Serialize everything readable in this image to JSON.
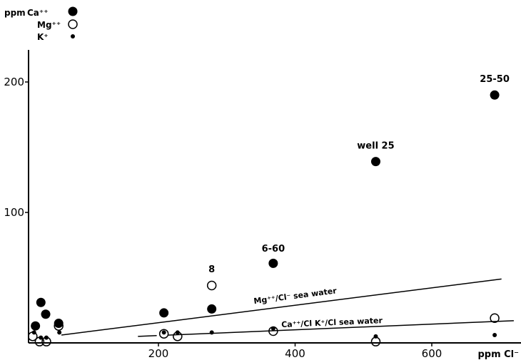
{
  "chart_data": {
    "type": "scatter",
    "xlabel": "ppm Cl⁻",
    "ylabel": "",
    "xlim": [
      -20,
      720
    ],
    "ylim": [
      0,
      230
    ],
    "x_ticks": [
      200,
      400,
      600
    ],
    "y_ticks": [
      100,
      200
    ],
    "legend": {
      "placement": "top-left",
      "title": "ppm",
      "entries": [
        {
          "label": "Ca⁺⁺",
          "marker": "filled-circle"
        },
        {
          "label": "Mg⁺⁺",
          "marker": "open-circle"
        },
        {
          "label": "K⁺",
          "marker": "small-filled-circle"
        }
      ]
    },
    "series": [
      {
        "name": "Ca⁺⁺",
        "marker": "filled-circle",
        "points": [
          {
            "x": 20,
            "y": 13
          },
          {
            "x": 28,
            "y": 31
          },
          {
            "x": 35,
            "y": 22
          },
          {
            "x": 54,
            "y": 15
          },
          {
            "x": 208,
            "y": 23
          },
          {
            "x": 278,
            "y": 26
          },
          {
            "x": 368,
            "y": 61
          },
          {
            "x": 518,
            "y": 139
          },
          {
            "x": 692,
            "y": 190
          }
        ]
      },
      {
        "name": "Mg⁺⁺",
        "marker": "open-circle",
        "points": [
          {
            "x": 16,
            "y": 5
          },
          {
            "x": 26,
            "y": 1
          },
          {
            "x": 36,
            "y": 1
          },
          {
            "x": 54,
            "y": 13
          },
          {
            "x": 208,
            "y": 7
          },
          {
            "x": 228,
            "y": 5
          },
          {
            "x": 278,
            "y": 44
          },
          {
            "x": 368,
            "y": 9
          },
          {
            "x": 518,
            "y": 1
          },
          {
            "x": 692,
            "y": 19
          }
        ]
      },
      {
        "name": "K⁺",
        "marker": "small-filled-circle",
        "points": [
          {
            "x": 18,
            "y": 8
          },
          {
            "x": 28,
            "y": 4
          },
          {
            "x": 36,
            "y": 4
          },
          {
            "x": 55,
            "y": 8
          },
          {
            "x": 208,
            "y": 8
          },
          {
            "x": 228,
            "y": 8
          },
          {
            "x": 278,
            "y": 8
          },
          {
            "x": 368,
            "y": 11
          },
          {
            "x": 518,
            "y": 5
          },
          {
            "x": 692,
            "y": 6
          }
        ]
      }
    ],
    "reference_lines": [
      {
        "name": "mg",
        "label": "Mg⁺⁺/Cl⁻  sea water",
        "x": [
          58,
          702
        ],
        "y": [
          6,
          49
        ],
        "style": "solid",
        "label_at": {
          "x": 340,
          "y": 30
        }
      },
      {
        "name": "ca",
        "label": "Ca⁺⁺/Cl   K⁺/Cl sea water",
        "x": [
          170,
          720
        ],
        "y": [
          5,
          17
        ],
        "style": "long-dash-start",
        "label_at": {
          "x": 380,
          "y": 12
        }
      }
    ],
    "annotations": [
      {
        "text": "25-50",
        "x": 692,
        "y": 200
      },
      {
        "text": "well 25",
        "x": 518,
        "y": 149
      },
      {
        "text": "6-60",
        "x": 368,
        "y": 70
      },
      {
        "text": "8",
        "x": 278,
        "y": 54
      }
    ]
  }
}
